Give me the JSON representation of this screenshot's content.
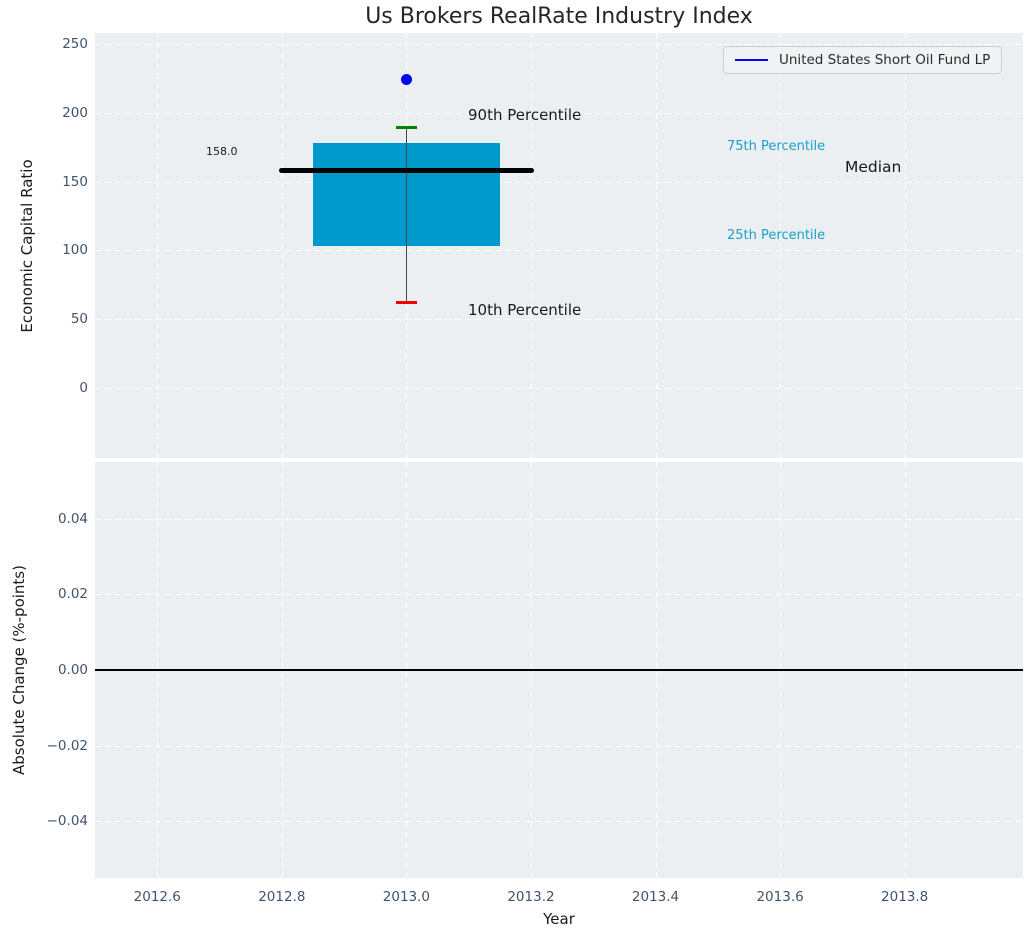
{
  "title": "Us Brokers RealRate Industry Index",
  "legend": {
    "label": "United States Short Oil Fund LP"
  },
  "axes": {
    "top": {
      "ylabel": "Economic Capital Ratio",
      "yticks": [
        {
          "v": 250,
          "label": "250"
        },
        {
          "v": 200,
          "label": "200"
        },
        {
          "v": 150,
          "label": "150"
        },
        {
          "v": 100,
          "label": "100"
        },
        {
          "v": 50,
          "label": "50"
        },
        {
          "v": 0,
          "label": "0"
        }
      ]
    },
    "bottom": {
      "ylabel": "Absolute Change (%-points)",
      "yticks": [
        {
          "v": 0.04,
          "label": "0.04"
        },
        {
          "v": 0.02,
          "label": "0.02"
        },
        {
          "v": 0.0,
          "label": "0.00"
        },
        {
          "v": -0.02,
          "label": "−0.02"
        },
        {
          "v": -0.04,
          "label": "−0.04"
        }
      ]
    },
    "x": {
      "label": "Year",
      "ticks": [
        {
          "v": 2012.6,
          "label": "2012.6"
        },
        {
          "v": 2012.8,
          "label": "2012.8"
        },
        {
          "v": 2013.0,
          "label": "2013.0"
        },
        {
          "v": 2013.2,
          "label": "2013.2"
        },
        {
          "v": 2013.4,
          "label": "2013.4"
        },
        {
          "v": 2013.6,
          "label": "2013.6"
        },
        {
          "v": 2013.8,
          "label": "2013.8"
        }
      ]
    }
  },
  "annotations": {
    "p90": "90th Percentile",
    "p10": "10th Percentile",
    "p75": "75th Percentile",
    "p25": "25th Percentile",
    "median": "Median",
    "median_value": "158.0"
  },
  "colors": {
    "axes_bg": "#eceff1",
    "grid": "#ffffff",
    "tick_text": "#41536b",
    "label_text": "#1a1a1a",
    "box_fill": "#0099cb",
    "cyan_text": "#189fcd",
    "green_cap": "#008000",
    "red_cap": "#f10000",
    "blue_marker": "#0404f0",
    "median_line": "#000000",
    "whisker": "#46494c",
    "zero_line": "#000000"
  },
  "chart_data": {
    "type": "boxplot",
    "title": "Us Brokers RealRate Industry Index",
    "xlabel": "Year",
    "grid": true,
    "legend_position": "upper right",
    "legend_entries": [
      "United States Short Oil Fund LP"
    ],
    "xlim": [
      2012.5,
      2013.99
    ],
    "xticks": [
      2012.6,
      2012.8,
      2013.0,
      2013.2,
      2013.4,
      2013.6,
      2013.8
    ],
    "subplots": [
      {
        "ylabel": "Economic Capital Ratio",
        "ylim": [
          -51,
          258
        ],
        "yticks": [
          0,
          50,
          100,
          150,
          200,
          250
        ],
        "box": {
          "x": 2013.0,
          "p90": 189,
          "p75": 178,
          "median": 158.0,
          "p25": 103,
          "p10": 62,
          "box_width": 0.3,
          "median_line_width": 0.41,
          "cap_width": 0.034
        },
        "points": [
          {
            "name": "United States Short Oil Fund LP",
            "x": 2013.0,
            "y": 224
          }
        ]
      },
      {
        "ylabel": "Absolute Change (%-points)",
        "ylim": [
          -0.055,
          0.055
        ],
        "yticks": [
          -0.04,
          -0.02,
          0.0,
          0.02,
          0.04
        ],
        "zero_line": 0.0,
        "points": []
      }
    ]
  }
}
